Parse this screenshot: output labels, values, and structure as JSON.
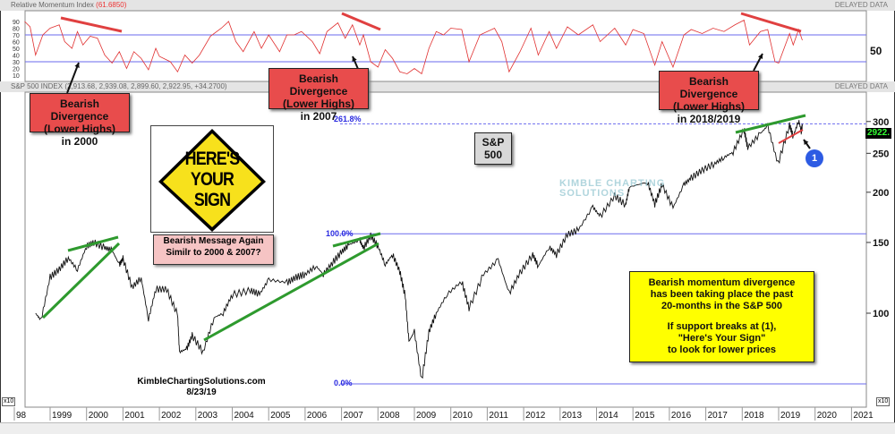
{
  "rmi_panel": {
    "title": "Relative Momentum Index",
    "value": "(61.6850)",
    "delayed": "DELAYED DATA",
    "axis_label": "50"
  },
  "price_panel": {
    "title": "S&P 500 INDEX (2,913.68, 2,939.08, 2,899.60, 2,922.95, +34.2700)",
    "delayed": "DELAYED DATA",
    "last_price": "2922.",
    "multiplier": "x10"
  },
  "annotations": {
    "div2000": [
      "Bearish Divergence",
      "(Lower Highs)",
      "in 2000"
    ],
    "div2007": [
      "Bearish Divergence",
      "(Lower Highs)",
      "in 2007"
    ],
    "div2018": [
      "Bearish Divergence",
      "(Lower Highs)",
      "in 2018/2019"
    ],
    "sp_label": [
      "S&P",
      "500"
    ],
    "sign": [
      "HERE'S",
      "YOUR",
      "SIGN"
    ],
    "sign_caption": [
      "Bearish Message Again",
      "Similr to 2000 & 2007?"
    ],
    "note": [
      "Bearish momentum divergence",
      "has been taking place the past",
      "20-months in the S&P 500",
      "",
      "If support breaks at (1),",
      "\"Here's Your Sign\"",
      "to look for lower prices"
    ],
    "marker": "1",
    "credit": [
      "KimbleChartingSolutions.com",
      "8/23/19"
    ],
    "watermark": [
      "KIMBLE CHARTING",
      "SOLUTIONS"
    ],
    "fib": [
      "261.8%",
      "100.0%",
      "0.0%"
    ]
  },
  "colors": {
    "price": "#111111",
    "rmi": "#e03030",
    "levels": "#6a6aee",
    "uptrend": "#2e9a2e",
    "downtrend": "#e04040",
    "box_red": "#e84c4c",
    "box_yellow": "#ffff00"
  },
  "chart_data": [
    {
      "type": "line",
      "title": "Relative Momentum Index",
      "ylim": [
        0,
        100
      ],
      "yticks": [
        10,
        20,
        30,
        40,
        50,
        60,
        70,
        80,
        90
      ],
      "reference_lines": [
        30,
        70
      ],
      "x": [
        1998.3,
        1998.45,
        1998.6,
        1998.8,
        1999.0,
        1999.25,
        1999.4,
        1999.6,
        1999.75,
        1999.9,
        2000.1,
        2000.3,
        2000.5,
        2000.7,
        2000.9,
        2001.1,
        2001.3,
        2001.5,
        2001.7,
        2001.9,
        2002.0,
        2002.3,
        2002.5,
        2002.7,
        2002.9,
        2003.1,
        2003.4,
        2003.7,
        2003.9,
        2004.1,
        2004.3,
        2004.6,
        2004.8,
        2005.0,
        2005.3,
        2005.5,
        2005.7,
        2005.9,
        2006.2,
        2006.4,
        2006.6,
        2006.9,
        2007.1,
        2007.3,
        2007.5,
        2007.6,
        2007.8,
        2008.0,
        2008.2,
        2008.4,
        2008.6,
        2008.8,
        2009.0,
        2009.2,
        2009.4,
        2009.6,
        2009.8,
        2010.0,
        2010.3,
        2010.5,
        2010.8,
        2011.2,
        2011.4,
        2011.6,
        2011.9,
        2012.2,
        2012.4,
        2012.7,
        2012.9,
        2013.2,
        2013.5,
        2013.9,
        2014.1,
        2014.5,
        2014.8,
        2015.0,
        2015.3,
        2015.6,
        2015.8,
        2016.1,
        2016.4,
        2016.6,
        2016.9,
        2017.2,
        2017.5,
        2017.8,
        2018.05,
        2018.2,
        2018.5,
        2018.7,
        2018.9,
        2019.0,
        2019.3,
        2019.4,
        2019.55,
        2019.65
      ],
      "y": [
        90,
        82,
        40,
        70,
        80,
        85,
        60,
        50,
        75,
        55,
        68,
        65,
        40,
        28,
        45,
        20,
        45,
        35,
        18,
        50,
        38,
        30,
        15,
        40,
        28,
        40,
        68,
        80,
        90,
        60,
        45,
        75,
        50,
        70,
        45,
        70,
        70,
        75,
        60,
        42,
        75,
        88,
        65,
        85,
        55,
        70,
        30,
        22,
        48,
        35,
        15,
        12,
        20,
        12,
        50,
        75,
        70,
        80,
        78,
        30,
        70,
        80,
        60,
        15,
        45,
        80,
        40,
        75,
        50,
        82,
        70,
        85,
        60,
        80,
        55,
        78,
        72,
        25,
        60,
        22,
        70,
        78,
        72,
        80,
        75,
        85,
        92,
        55,
        75,
        78,
        30,
        28,
        72,
        55,
        78,
        62
      ]
    },
    {
      "type": "line",
      "title": "S&P 500 INDEX",
      "yscale": "log",
      "ylim": [
        640,
        3150
      ],
      "yticks": [
        1000,
        1500,
        2000,
        2500,
        3000
      ],
      "ytick_labels": [
        "100",
        "150",
        "200",
        "250",
        "300"
      ],
      "xticks": [
        "98",
        "1999",
        "2000",
        "2001",
        "2002",
        "2003",
        "2004",
        "2005",
        "2006",
        "2007",
        "2008",
        "2009",
        "2010",
        "2011",
        "2012",
        "2013",
        "2014",
        "2015",
        "2016",
        "2017",
        "2018",
        "2019",
        "2020",
        "2021"
      ],
      "fib_levels": [
        {
          "label": "0.0%",
          "value": 667
        },
        {
          "label": "100.0%",
          "value": 1576
        },
        {
          "label": "261.8%",
          "value": 2960
        }
      ],
      "x": [
        1998.6,
        1998.75,
        1999.0,
        1999.25,
        1999.5,
        1999.75,
        2000.0,
        2000.2,
        2000.5,
        2000.7,
        2000.9,
        2001.0,
        2001.25,
        2001.5,
        2001.7,
        2001.9,
        2002.2,
        2002.5,
        2002.55,
        2002.75,
        2002.9,
        2003.2,
        2003.5,
        2003.75,
        2004.0,
        2004.5,
        2004.75,
        2005.0,
        2005.5,
        2005.75,
        2006.0,
        2006.3,
        2006.5,
        2006.75,
        2007.0,
        2007.2,
        2007.5,
        2007.6,
        2007.8,
        2008.0,
        2008.2,
        2008.4,
        2008.6,
        2008.75,
        2008.85,
        2009.0,
        2009.2,
        2009.4,
        2009.6,
        2009.9,
        2010.3,
        2010.5,
        2010.9,
        2011.3,
        2011.6,
        2011.9,
        2012.25,
        2012.4,
        2012.7,
        2012.9,
        2013.2,
        2013.5,
        2013.9,
        2014.1,
        2014.5,
        2014.8,
        2014.9,
        2015.4,
        2015.6,
        2015.8,
        2016.1,
        2016.4,
        2016.6,
        2016.9,
        2017.25,
        2017.5,
        2017.75,
        2018.05,
        2018.15,
        2018.5,
        2018.7,
        2018.98,
        2019.3,
        2019.4,
        2019.55,
        2019.62,
        2019.65
      ],
      "y": [
        1000,
        960,
        1229,
        1286,
        1372,
        1282,
        1469,
        1500,
        1455,
        1436,
        1320,
        1366,
        1160,
        1224,
        965,
        1148,
        1147,
        990,
        800,
        815,
        880,
        800,
        975,
        1000,
        1112,
        1140,
        1115,
        1212,
        1191,
        1228,
        1250,
        1310,
        1250,
        1335,
        1420,
        1480,
        1520,
        1450,
        1560,
        1468,
        1320,
        1400,
        1270,
        1100,
        850,
        900,
        680,
        900,
        1000,
        1115,
        1200,
        1030,
        1250,
        1360,
        1120,
        1260,
        1400,
        1310,
        1460,
        1400,
        1570,
        1610,
        1840,
        1740,
        1960,
        1860,
        2060,
        2120,
        1870,
        2090,
        1830,
        2090,
        2170,
        2270,
        2360,
        2440,
        2520,
        2870,
        2580,
        2800,
        2930,
        2350,
        2940,
        2750,
        3020,
        2840,
        2922
      ]
    }
  ]
}
